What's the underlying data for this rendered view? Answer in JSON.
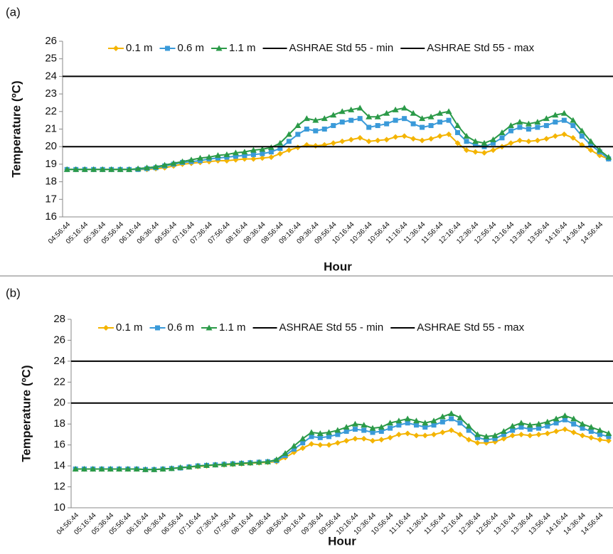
{
  "chart_data": [
    {
      "type": "line",
      "label": "(a)",
      "x_label": "Hour",
      "y_label": "Temperature (ºC)",
      "categories": [
        "04:56:44",
        null,
        "05:16:44",
        null,
        "05:36:44",
        null,
        "05:56:44",
        null,
        "06:16:44",
        null,
        "06:36:44",
        null,
        "06:56:44",
        null,
        "07:16:44",
        null,
        "07:36:44",
        null,
        "07:56:44",
        null,
        "08:16:44",
        null,
        "08:36:44",
        null,
        "08:56:44",
        null,
        "09:16:44",
        null,
        "09:36:44",
        null,
        "09:56:44",
        null,
        "10:16:44",
        null,
        "10:36:44",
        null,
        "10:56:44",
        null,
        "11:16:44",
        null,
        "11:36:44",
        null,
        "11:56:44",
        null,
        "12:16:44",
        null,
        "12:36:44",
        null,
        "12:56:44",
        null,
        "13:16:44",
        null,
        "13:36:44",
        null,
        "13:56:44",
        null,
        "14:16:44",
        null,
        "14:36:44",
        null,
        "14:56:44",
        null
      ],
      "ylim": [
        16,
        26
      ],
      "yticks": [
        16,
        17,
        18,
        19,
        20,
        21,
        22,
        23,
        24,
        25,
        26
      ],
      "series": [
        {
          "name": "0.1 m",
          "color": "#f4b400",
          "marker": "diamond",
          "values": [
            18.7,
            18.7,
            18.7,
            18.7,
            18.7,
            18.7,
            18.7,
            18.7,
            18.7,
            18.7,
            18.75,
            18.8,
            18.9,
            19.0,
            19.05,
            19.1,
            19.15,
            19.2,
            19.2,
            19.25,
            19.3,
            19.3,
            19.35,
            19.4,
            19.6,
            19.8,
            19.95,
            20.1,
            20.05,
            20.1,
            20.2,
            20.3,
            20.4,
            20.5,
            20.3,
            20.35,
            20.4,
            20.55,
            20.6,
            20.45,
            20.35,
            20.45,
            20.6,
            20.7,
            20.2,
            19.8,
            19.7,
            19.65,
            19.8,
            20.0,
            20.2,
            20.35,
            20.3,
            20.35,
            20.45,
            20.6,
            20.7,
            20.5,
            20.1,
            19.8,
            19.5,
            19.3
          ]
        },
        {
          "name": "0.6 m",
          "color": "#3a9ad9",
          "marker": "square",
          "values": [
            18.7,
            18.7,
            18.7,
            18.7,
            18.7,
            18.7,
            18.7,
            18.7,
            18.7,
            18.75,
            18.8,
            18.9,
            19.0,
            19.1,
            19.15,
            19.2,
            19.3,
            19.35,
            19.4,
            19.45,
            19.5,
            19.55,
            19.6,
            19.7,
            19.9,
            20.3,
            20.7,
            21.0,
            20.9,
            21.0,
            21.2,
            21.4,
            21.5,
            21.6,
            21.1,
            21.2,
            21.3,
            21.5,
            21.6,
            21.3,
            21.1,
            21.2,
            21.4,
            21.5,
            20.8,
            20.3,
            20.1,
            20.0,
            20.2,
            20.5,
            20.9,
            21.1,
            21.0,
            21.1,
            21.2,
            21.4,
            21.5,
            21.2,
            20.6,
            20.1,
            19.7,
            19.3
          ]
        },
        {
          "name": "1.1 m",
          "color": "#2b9a48",
          "marker": "triangle",
          "values": [
            18.7,
            18.7,
            18.7,
            18.7,
            18.7,
            18.7,
            18.7,
            18.7,
            18.75,
            18.8,
            18.85,
            18.95,
            19.05,
            19.15,
            19.25,
            19.35,
            19.4,
            19.5,
            19.55,
            19.65,
            19.7,
            19.8,
            19.85,
            19.95,
            20.2,
            20.7,
            21.2,
            21.6,
            21.5,
            21.6,
            21.8,
            22.0,
            22.1,
            22.2,
            21.7,
            21.7,
            21.9,
            22.1,
            22.2,
            21.9,
            21.6,
            21.7,
            21.9,
            22.0,
            21.2,
            20.6,
            20.3,
            20.2,
            20.4,
            20.8,
            21.2,
            21.4,
            21.3,
            21.4,
            21.6,
            21.8,
            21.9,
            21.5,
            20.9,
            20.3,
            19.8,
            19.4
          ]
        },
        {
          "name": "ASHRAE Std 55 - min",
          "color": "#000000",
          "marker": "hline",
          "value": 20
        },
        {
          "name": "ASHRAE Std 55 - max",
          "color": "#000000",
          "marker": "hline",
          "value": 24
        }
      ]
    },
    {
      "type": "line",
      "label": "(b)",
      "x_label": "Hour",
      "y_label": "Temperature (ºC)",
      "categories": [
        "04:56:44",
        null,
        "05:16:44",
        null,
        "05:36:44",
        null,
        "05:56:44",
        null,
        "06:16:44",
        null,
        "06:36:44",
        null,
        "06:56:44",
        null,
        "07:16:44",
        null,
        "07:36:44",
        null,
        "07:56:44",
        null,
        "08:16:44",
        null,
        "08:36:44",
        null,
        "08:56:44",
        null,
        "09:16:44",
        null,
        "09:36:44",
        null,
        "09:56:44",
        null,
        "10:16:44",
        null,
        "10:36:44",
        null,
        "10:56:44",
        null,
        "11:16:44",
        null,
        "11:36:44",
        null,
        "11:56:44",
        null,
        "12:16:44",
        null,
        "12:36:44",
        null,
        "12:56:44",
        null,
        "13:16:44",
        null,
        "13:36:44",
        null,
        "13:56:44",
        null,
        "14:16:44",
        null,
        "14:36:44",
        null,
        "14:56:44",
        null
      ],
      "ylim": [
        10,
        28
      ],
      "yticks": [
        10,
        12,
        14,
        16,
        18,
        20,
        22,
        24,
        26,
        28
      ],
      "series": [
        {
          "name": "0.1 m",
          "color": "#f4b400",
          "marker": "diamond",
          "values": [
            13.7,
            13.7,
            13.7,
            13.7,
            13.7,
            13.7,
            13.7,
            13.7,
            13.65,
            13.65,
            13.7,
            13.75,
            13.8,
            13.9,
            13.95,
            14.0,
            14.1,
            14.1,
            14.15,
            14.2,
            14.25,
            14.3,
            14.35,
            14.4,
            14.8,
            15.3,
            15.7,
            16.1,
            16.0,
            16.0,
            16.2,
            16.4,
            16.6,
            16.6,
            16.4,
            16.5,
            16.7,
            17.0,
            17.1,
            16.9,
            16.9,
            17.0,
            17.2,
            17.4,
            17.0,
            16.5,
            16.2,
            16.2,
            16.3,
            16.6,
            16.9,
            17.0,
            16.9,
            17.0,
            17.1,
            17.3,
            17.5,
            17.2,
            16.9,
            16.7,
            16.5,
            16.4
          ]
        },
        {
          "name": "0.6 m",
          "color": "#3a9ad9",
          "marker": "square",
          "values": [
            13.7,
            13.7,
            13.7,
            13.7,
            13.7,
            13.7,
            13.7,
            13.7,
            13.65,
            13.65,
            13.7,
            13.75,
            13.8,
            13.9,
            14.0,
            14.05,
            14.1,
            14.15,
            14.2,
            14.25,
            14.3,
            14.35,
            14.4,
            14.5,
            15.0,
            15.6,
            16.2,
            16.8,
            16.7,
            16.8,
            17.0,
            17.3,
            17.5,
            17.4,
            17.2,
            17.3,
            17.6,
            17.9,
            18.1,
            17.9,
            17.7,
            17.9,
            18.2,
            18.5,
            18.1,
            17.4,
            16.7,
            16.5,
            16.6,
            17.0,
            17.4,
            17.7,
            17.5,
            17.6,
            17.8,
            18.1,
            18.4,
            18.0,
            17.6,
            17.3,
            17.0,
            16.8
          ]
        },
        {
          "name": "1.1 m",
          "color": "#2b9a48",
          "marker": "triangle",
          "values": [
            13.7,
            13.7,
            13.7,
            13.7,
            13.7,
            13.7,
            13.7,
            13.7,
            13.65,
            13.65,
            13.7,
            13.75,
            13.85,
            13.9,
            14.0,
            14.05,
            14.1,
            14.15,
            14.2,
            14.25,
            14.3,
            14.35,
            14.4,
            14.6,
            15.2,
            15.9,
            16.6,
            17.2,
            17.1,
            17.2,
            17.4,
            17.7,
            18.0,
            17.9,
            17.6,
            17.7,
            18.1,
            18.3,
            18.5,
            18.3,
            18.1,
            18.3,
            18.7,
            19.0,
            18.6,
            17.8,
            17.0,
            16.8,
            16.9,
            17.3,
            17.8,
            18.1,
            17.9,
            18.0,
            18.2,
            18.5,
            18.8,
            18.5,
            18.0,
            17.7,
            17.4,
            17.1
          ]
        },
        {
          "name": "ASHRAE Std 55 - min",
          "color": "#000000",
          "marker": "hline",
          "value": 20
        },
        {
          "name": "ASHRAE Std 55 - max",
          "color": "#000000",
          "marker": "hline",
          "value": 24
        }
      ]
    }
  ]
}
